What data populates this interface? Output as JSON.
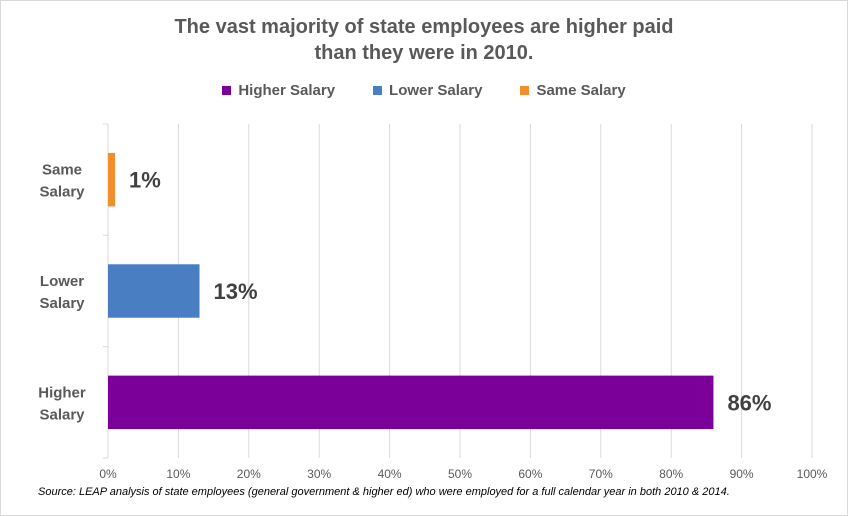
{
  "title_lines": [
    "The vast majority of state employees are higher paid",
    "than they were in 2010."
  ],
  "legend": [
    {
      "label": "Higher Salary",
      "color": "#7b0099"
    },
    {
      "label": "Lower Salary",
      "color": "#4a7ec3"
    },
    {
      "label": "Same Salary",
      "color": "#f28e2b"
    }
  ],
  "source": "Source: LEAP analysis of state employees (general government & higher ed) who were employed for a full calendar year in both 2010 & 2014.",
  "chart_data": {
    "type": "bar",
    "orientation": "horizontal",
    "title": "The vast majority of state employees are higher paid than they were in 2010.",
    "categories": [
      "Same Salary",
      "Lower Salary",
      "Higher Salary"
    ],
    "category_lines": [
      [
        "Same",
        "Salary"
      ],
      [
        "Lower",
        "Salary"
      ],
      [
        "Higher",
        "Salary"
      ]
    ],
    "values": [
      1,
      13,
      86
    ],
    "value_labels": [
      "1%",
      "13%",
      "86%"
    ],
    "colors": [
      "#f28e2b",
      "#4a7ec3",
      "#7b0099"
    ],
    "xlim": [
      0,
      100
    ],
    "xticks": [
      0,
      10,
      20,
      30,
      40,
      50,
      60,
      70,
      80,
      90,
      100
    ],
    "xtick_labels": [
      "0%",
      "10%",
      "20%",
      "30%",
      "40%",
      "50%",
      "60%",
      "70%",
      "80%",
      "90%",
      "100%"
    ],
    "grid": true,
    "legend_position": "top"
  }
}
